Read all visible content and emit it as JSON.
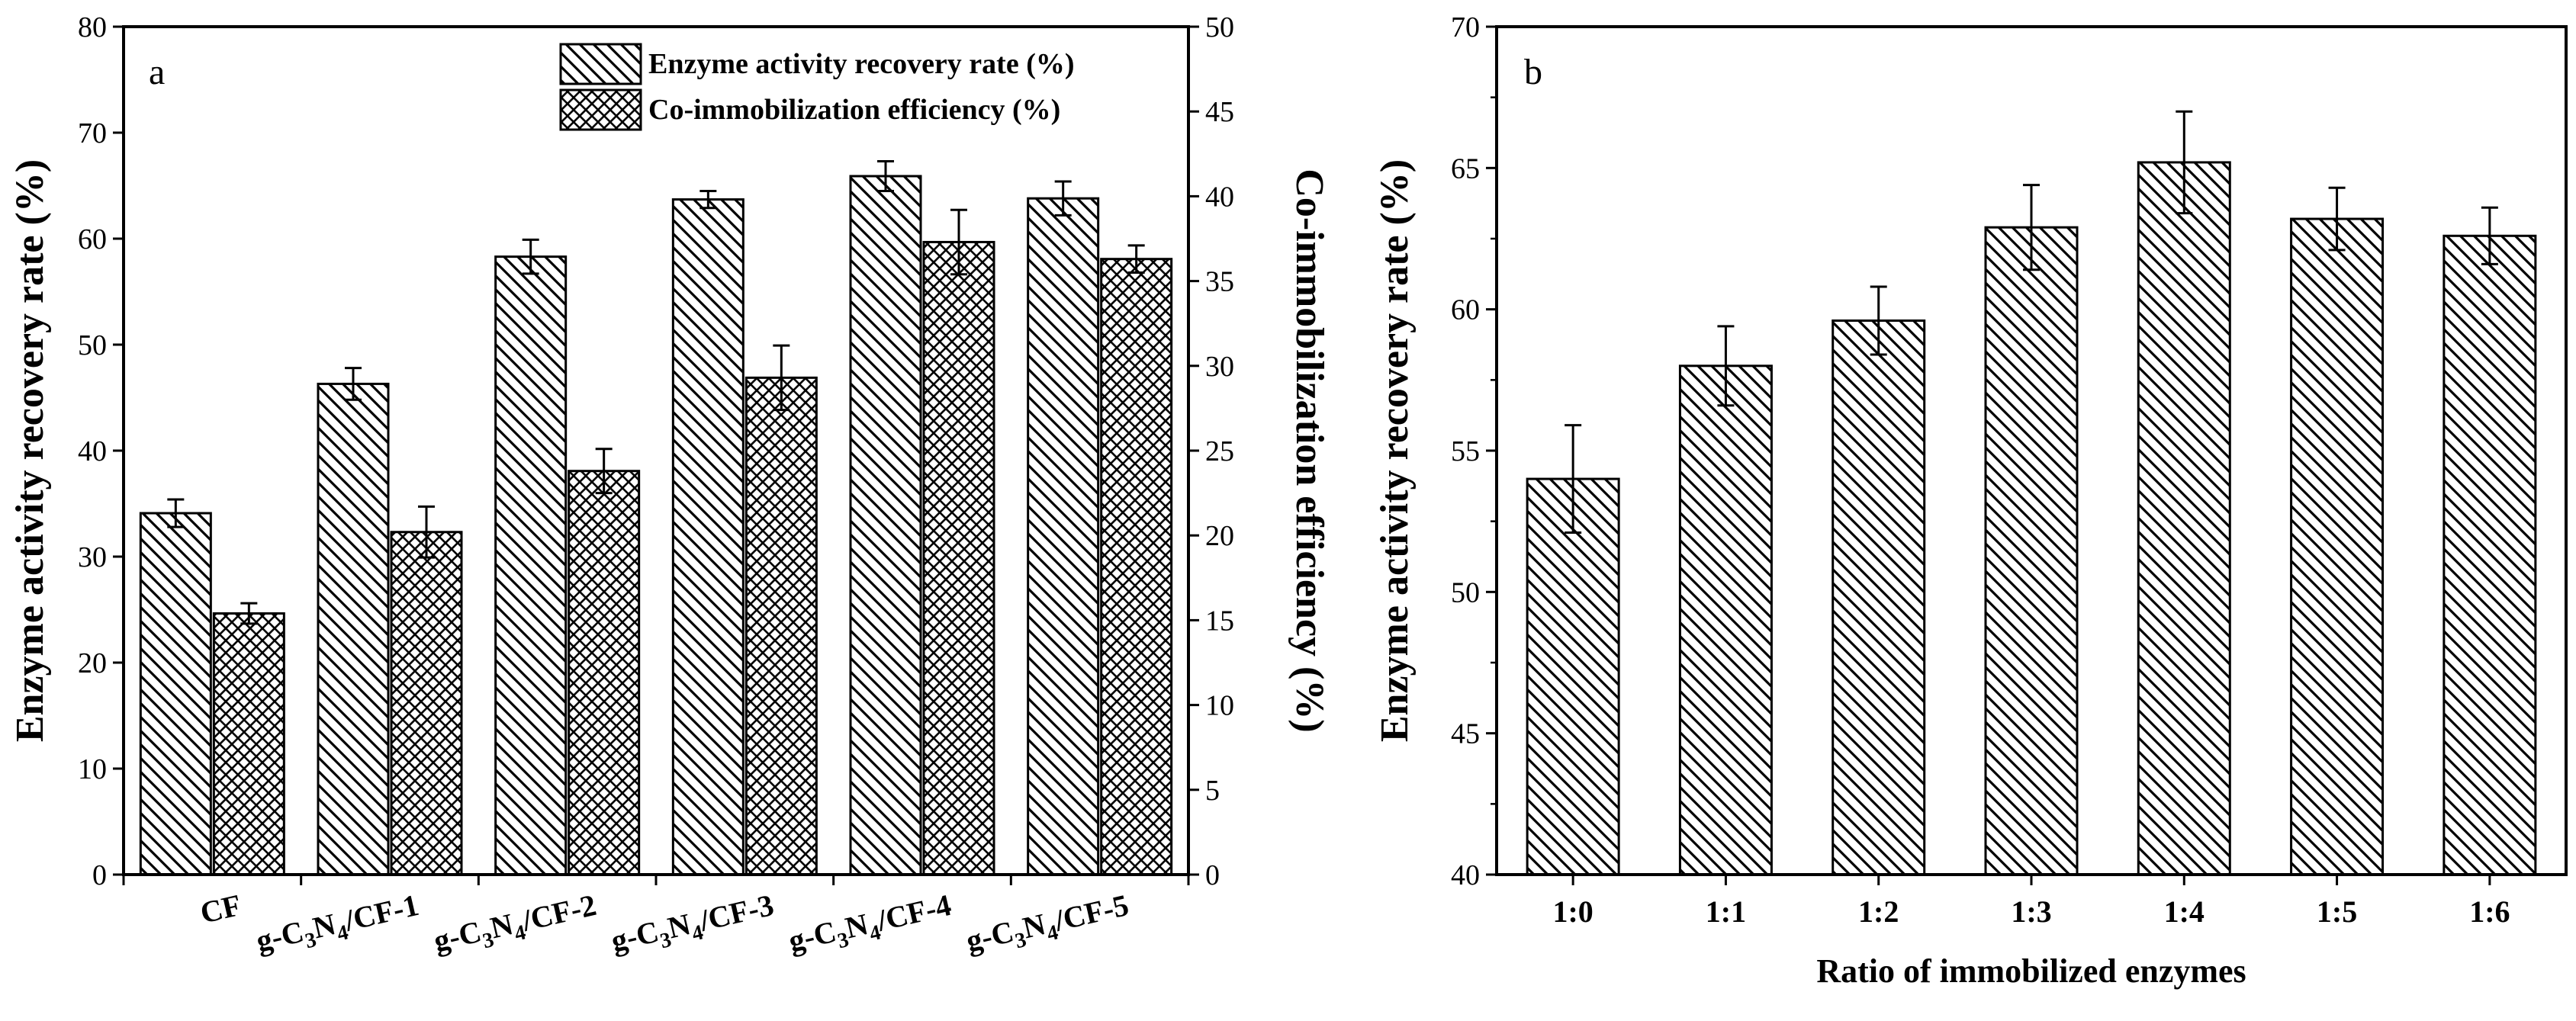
{
  "chart_data": [
    {
      "type": "bar",
      "panel": "a",
      "categories": [
        {
          "prefix": "",
          "sub": "",
          "full": "CF"
        },
        {
          "prefix": "g-C",
          "sub1": "3",
          "mid": "N",
          "sub2": "4",
          "suffix": "/CF-1",
          "full": "g-C3N4/CF-1"
        },
        {
          "prefix": "g-C",
          "sub1": "3",
          "mid": "N",
          "sub2": "4",
          "suffix": "/CF-2",
          "full": "g-C3N4/CF-2"
        },
        {
          "prefix": "g-C",
          "sub1": "3",
          "mid": "N",
          "sub2": "4",
          "suffix": "/CF-3",
          "full": "g-C3N4/CF-3"
        },
        {
          "prefix": "g-C",
          "sub1": "3",
          "mid": "N",
          "sub2": "4",
          "suffix": "/CF-4",
          "full": "g-C3N4/CF-4"
        },
        {
          "prefix": "g-C",
          "sub1": "3",
          "mid": "N",
          "sub2": "4",
          "suffix": "/CF-5",
          "full": "g-C3N4/CF-5"
        }
      ],
      "series": [
        {
          "name": "Enzyme activity recovery rate (%)",
          "axis": "left",
          "pattern": "hatch",
          "values": [
            34.1,
            46.3,
            58.3,
            63.7,
            65.9,
            63.8
          ],
          "errors": [
            1.3,
            1.5,
            1.6,
            0.8,
            1.4,
            1.6
          ]
        },
        {
          "name": "Co-immobilization efficiency (%)",
          "axis": "right",
          "pattern": "crosshatch",
          "values": [
            15.4,
            20.2,
            23.8,
            29.3,
            37.3,
            36.3
          ],
          "errors": [
            0.6,
            1.5,
            1.3,
            1.9,
            1.9,
            0.8
          ]
        }
      ],
      "ylabel_left": "Enzyme activity recovery rate (%)",
      "ylabel_right": "Co-immobilization efficiency (%)",
      "ylim_left": [
        0,
        80
      ],
      "yticks_left": [
        0,
        10,
        20,
        30,
        40,
        50,
        60,
        70,
        80
      ],
      "ylim_right": [
        0,
        50
      ],
      "yticks_right": [
        0,
        5,
        10,
        15,
        20,
        25,
        30,
        35,
        40,
        45,
        50
      ],
      "legend": "top-right",
      "label": "a"
    },
    {
      "type": "bar",
      "panel": "b",
      "categories": [
        "1:0",
        "1:1",
        "1:2",
        "1:3",
        "1:4",
        "1:5",
        "1:6"
      ],
      "series": [
        {
          "name": "Enzyme activity recovery rate (%)",
          "pattern": "hatch",
          "values": [
            54.0,
            58.0,
            59.6,
            62.9,
            65.2,
            63.2,
            62.6
          ],
          "errors": [
            1.9,
            1.4,
            1.2,
            1.5,
            1.8,
            1.1,
            1.0
          ]
        }
      ],
      "xlabel": "Ratio of immobilized enzymes",
      "ylabel": "Enzyme activity recovery rate (%)",
      "ylim": [
        40,
        70
      ],
      "yticks": [
        40,
        45,
        50,
        55,
        60,
        65,
        70
      ],
      "label": "b"
    }
  ]
}
